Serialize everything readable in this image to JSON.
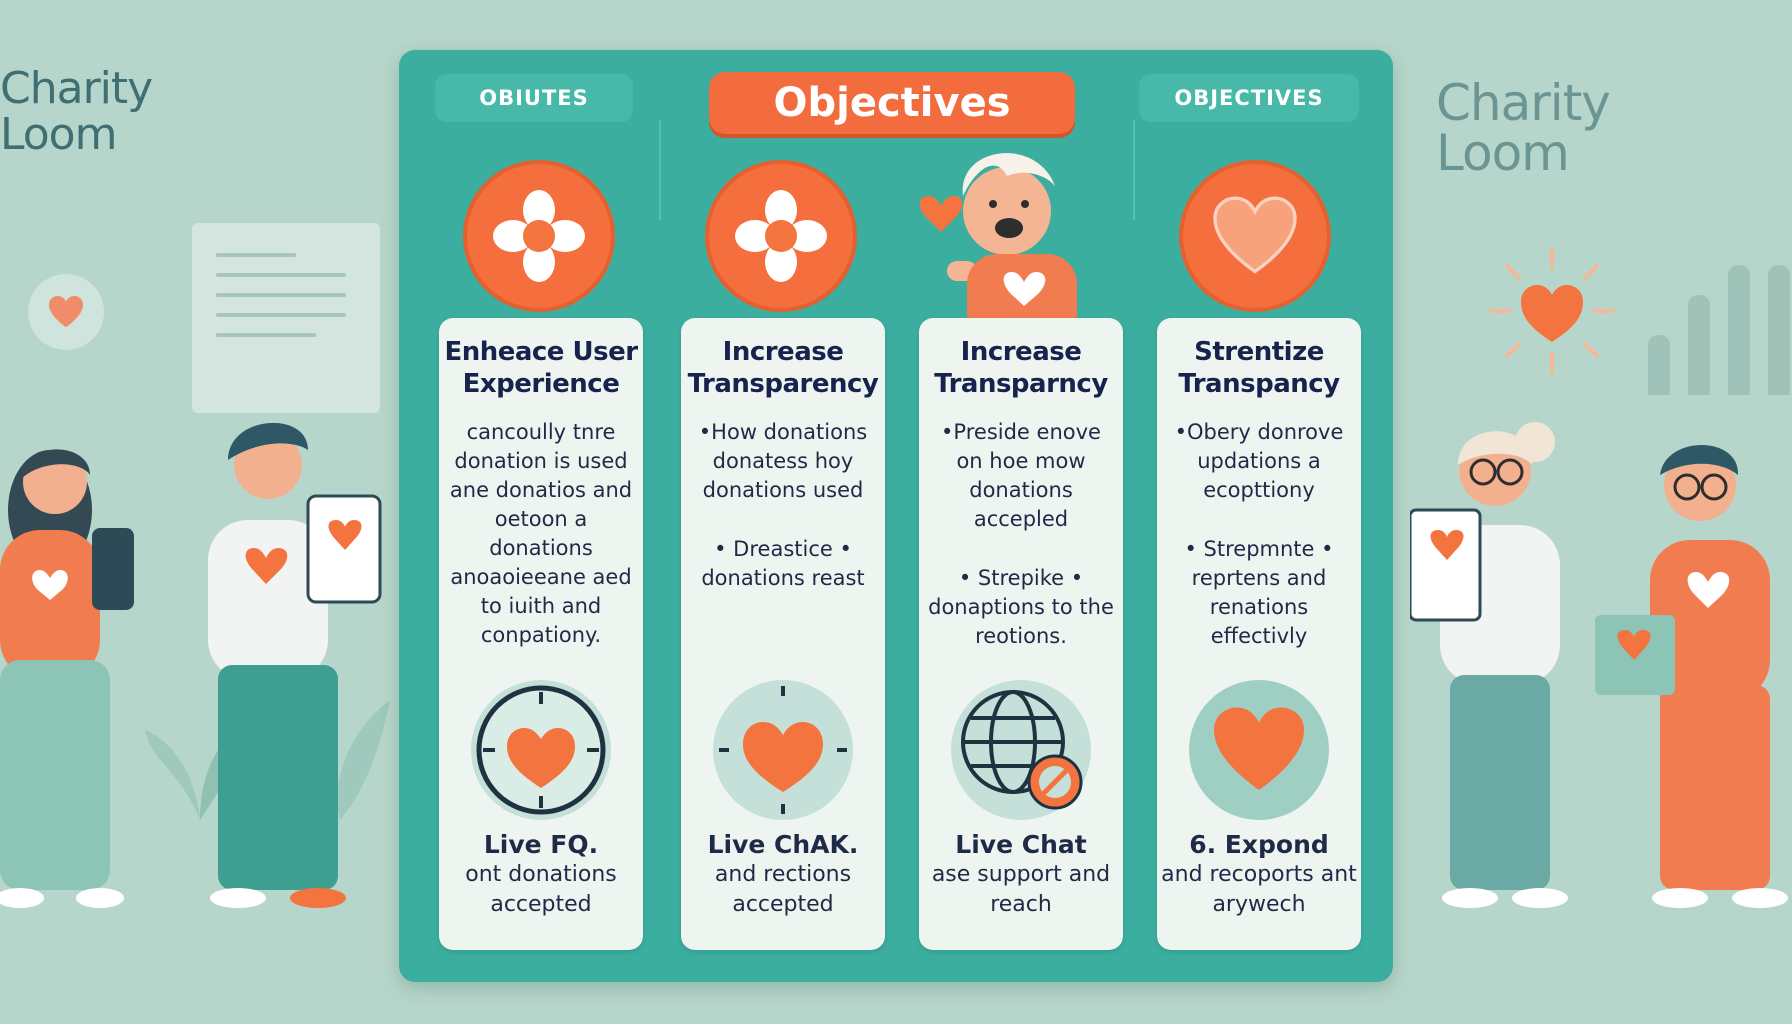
{
  "brand": {
    "logo_left": "Charity Loom",
    "logo_right": "Charity Loom"
  },
  "board": {
    "title": "Objectives",
    "left_tab": "OBIUTES",
    "right_tab": "OBJECTIVES"
  },
  "columns": [
    {
      "heading": "Enheace User Experience",
      "body": [
        "cancoully tnre donation is used ane donatios and oetoon a donations anoaoieeane aed to iuith and conpationy."
      ],
      "icon": "clock-heart-icon",
      "footer_title": "Live FQ.",
      "footer_lines": [
        "ont donations accepted"
      ]
    },
    {
      "heading": "Increase Transparency",
      "body": [
        "•How donations donatess hoy donations used",
        "• Dreastice • donations reast"
      ],
      "icon": "heart-dial-icon",
      "footer_title": "Live ChAK.",
      "footer_lines": [
        "and rections accepted"
      ]
    },
    {
      "heading": "Increase Transparncy",
      "body": [
        "•Preside enove on hoe mow donations accepled",
        "• Strepike • donaptions to the reotions."
      ],
      "icon": "globe-icon",
      "footer_title": "Live Chat",
      "footer_lines": [
        "ase support and reach"
      ]
    },
    {
      "heading": "Strentize Transpancy",
      "body": [
        "•Obery donrove updations a ecopttiony",
        "• Strepmnte • reprtens and renations effectivly"
      ],
      "icon": "heart-icon",
      "footer_title": "6. Expond",
      "footer_lines": [
        "and recoports ant arywech"
      ]
    }
  ],
  "colors": {
    "board": "#3cae9f",
    "accent": "#f26c3d",
    "card": "#eef5f1",
    "text": "#17224d",
    "background": "#b7d6cb"
  }
}
